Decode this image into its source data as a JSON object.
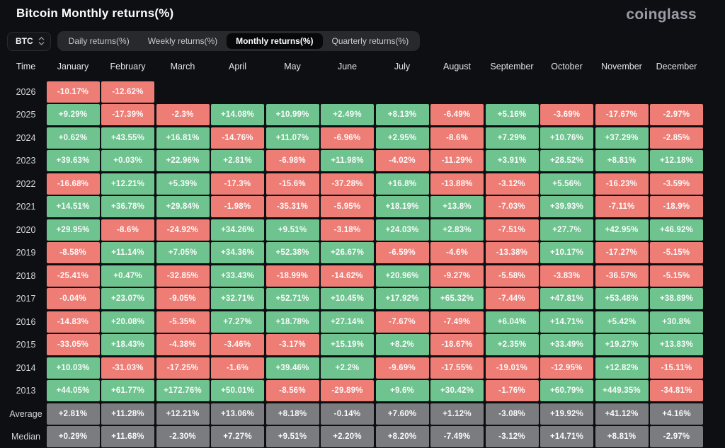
{
  "header": {
    "title": "Bitcoin Monthly returns(%)",
    "brand": "coinglass"
  },
  "controls": {
    "coin_select": {
      "value": "BTC"
    },
    "tabs": [
      {
        "label": "Daily returns(%)",
        "selected": false
      },
      {
        "label": "Weekly returns(%)",
        "selected": false
      },
      {
        "label": "Monthly returns(%)",
        "selected": true
      },
      {
        "label": "Quarterly returns(%)",
        "selected": false
      }
    ]
  },
  "chart_data": {
    "type": "heatmap",
    "title": "Bitcoin Monthly returns(%)",
    "unit": "%",
    "time_column_header": "Time",
    "months": [
      "January",
      "February",
      "March",
      "April",
      "May",
      "June",
      "July",
      "August",
      "September",
      "October",
      "November",
      "December"
    ],
    "rows": [
      {
        "label": "2026",
        "kind": "year",
        "values": [
          "-10.17%",
          "-12.62%",
          null,
          null,
          null,
          null,
          null,
          null,
          null,
          null,
          null,
          null
        ]
      },
      {
        "label": "2025",
        "kind": "year",
        "values": [
          "+9.29%",
          "-17.39%",
          "-2.3%",
          "+14.08%",
          "+10.99%",
          "+2.49%",
          "+8.13%",
          "-6.49%",
          "+5.16%",
          "-3.69%",
          "-17.67%",
          "-2.97%"
        ]
      },
      {
        "label": "2024",
        "kind": "year",
        "values": [
          "+0.62%",
          "+43.55%",
          "+16.81%",
          "-14.76%",
          "+11.07%",
          "-6.96%",
          "+2.95%",
          "-8.6%",
          "+7.29%",
          "+10.76%",
          "+37.29%",
          "-2.85%"
        ]
      },
      {
        "label": "2023",
        "kind": "year",
        "values": [
          "+39.63%",
          "+0.03%",
          "+22.96%",
          "+2.81%",
          "-6.98%",
          "+11.98%",
          "-4.02%",
          "-11.29%",
          "+3.91%",
          "+28.52%",
          "+8.81%",
          "+12.18%"
        ]
      },
      {
        "label": "2022",
        "kind": "year",
        "values": [
          "-16.68%",
          "+12.21%",
          "+5.39%",
          "-17.3%",
          "-15.6%",
          "-37.28%",
          "+16.8%",
          "-13.88%",
          "-3.12%",
          "+5.56%",
          "-16.23%",
          "-3.59%"
        ]
      },
      {
        "label": "2021",
        "kind": "year",
        "values": [
          "+14.51%",
          "+36.78%",
          "+29.84%",
          "-1.98%",
          "-35.31%",
          "-5.95%",
          "+18.19%",
          "+13.8%",
          "-7.03%",
          "+39.93%",
          "-7.11%",
          "-18.9%"
        ]
      },
      {
        "label": "2020",
        "kind": "year",
        "values": [
          "+29.95%",
          "-8.6%",
          "-24.92%",
          "+34.26%",
          "+9.51%",
          "-3.18%",
          "+24.03%",
          "+2.83%",
          "-7.51%",
          "+27.7%",
          "+42.95%",
          "+46.92%"
        ]
      },
      {
        "label": "2019",
        "kind": "year",
        "values": [
          "-8.58%",
          "+11.14%",
          "+7.05%",
          "+34.36%",
          "+52.38%",
          "+26.67%",
          "-6.59%",
          "-4.6%",
          "-13.38%",
          "+10.17%",
          "-17.27%",
          "-5.15%"
        ]
      },
      {
        "label": "2018",
        "kind": "year",
        "values": [
          "-25.41%",
          "+0.47%",
          "-32.85%",
          "+33.43%",
          "-18.99%",
          "-14.62%",
          "+20.96%",
          "-9.27%",
          "-5.58%",
          "-3.83%",
          "-36.57%",
          "-5.15%"
        ]
      },
      {
        "label": "2017",
        "kind": "year",
        "values": [
          "-0.04%",
          "+23.07%",
          "-9.05%",
          "+32.71%",
          "+52.71%",
          "+10.45%",
          "+17.92%",
          "+65.32%",
          "-7.44%",
          "+47.81%",
          "+53.48%",
          "+38.89%"
        ]
      },
      {
        "label": "2016",
        "kind": "year",
        "values": [
          "-14.83%",
          "+20.08%",
          "-5.35%",
          "+7.27%",
          "+18.78%",
          "+27.14%",
          "-7.67%",
          "-7.49%",
          "+6.04%",
          "+14.71%",
          "+5.42%",
          "+30.8%"
        ]
      },
      {
        "label": "2015",
        "kind": "year",
        "values": [
          "-33.05%",
          "+18.43%",
          "-4.38%",
          "-3.46%",
          "-3.17%",
          "+15.19%",
          "+8.2%",
          "-18.67%",
          "+2.35%",
          "+33.49%",
          "+19.27%",
          "+13.83%"
        ]
      },
      {
        "label": "2014",
        "kind": "year",
        "values": [
          "+10.03%",
          "-31.03%",
          "-17.25%",
          "-1.6%",
          "+39.46%",
          "+2.2%",
          "-9.69%",
          "-17.55%",
          "-19.01%",
          "-12.95%",
          "+12.82%",
          "-15.11%"
        ]
      },
      {
        "label": "2013",
        "kind": "year",
        "values": [
          "+44.05%",
          "+61.77%",
          "+172.76%",
          "+50.01%",
          "-8.56%",
          "-29.89%",
          "+9.6%",
          "+30.42%",
          "-1.76%",
          "+60.79%",
          "+449.35%",
          "-34.81%"
        ]
      },
      {
        "label": "Average",
        "kind": "summary",
        "values": [
          "+2.81%",
          "+11.28%",
          "+12.21%",
          "+13.06%",
          "+8.18%",
          "-0.14%",
          "+7.60%",
          "+1.12%",
          "-3.08%",
          "+19.92%",
          "+41.12%",
          "+4.16%"
        ]
      },
      {
        "label": "Median",
        "kind": "summary",
        "values": [
          "+0.29%",
          "+11.68%",
          "-2.30%",
          "+7.27%",
          "+9.51%",
          "+2.20%",
          "+8.20%",
          "-7.49%",
          "-3.12%",
          "+14.71%",
          "+8.81%",
          "-2.97%"
        ]
      }
    ],
    "colors": {
      "positive": "#6fc38f",
      "negative": "#ee7d75",
      "summary": "#7b7c80",
      "background": "#0e0f13"
    },
    "legend_position": "none",
    "grid": false
  }
}
